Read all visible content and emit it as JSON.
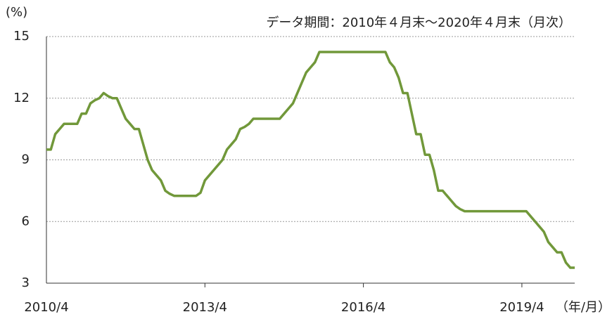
{
  "chart_data": {
    "type": "line",
    "y_unit": "(%)",
    "subtitle": "データ期間：2010年４月末～2020年４月末（月次）",
    "x_unit": "（年/月）",
    "categories": [
      "2010/4",
      null,
      null,
      null,
      null,
      null,
      null,
      null,
      null,
      null,
      null,
      null,
      null,
      null,
      null,
      null,
      null,
      null,
      null,
      null,
      null,
      null,
      null,
      null,
      null,
      null,
      null,
      null,
      null,
      null,
      null,
      null,
      null,
      null,
      null,
      null,
      "2013/4",
      null,
      null,
      null,
      null,
      null,
      null,
      null,
      null,
      null,
      null,
      null,
      null,
      null,
      null,
      null,
      null,
      null,
      null,
      null,
      null,
      null,
      null,
      null,
      null,
      null,
      null,
      null,
      null,
      null,
      null,
      null,
      null,
      null,
      null,
      null,
      "2016/4",
      null,
      null,
      null,
      null,
      null,
      null,
      null,
      null,
      null,
      null,
      null,
      null,
      null,
      null,
      null,
      null,
      null,
      null,
      null,
      null,
      null,
      null,
      null,
      null,
      null,
      null,
      null,
      null,
      null,
      null,
      null,
      null,
      null,
      null,
      null,
      "2019/4",
      null,
      null,
      null,
      null,
      null,
      null,
      null,
      null,
      null,
      null,
      null,
      null
    ],
    "series": [
      {
        "color": "#71983a",
        "values": [
          9.5,
          9.5,
          10.25,
          10.5,
          10.75,
          10.75,
          10.75,
          10.75,
          11.25,
          11.25,
          11.75,
          11.9,
          12.0,
          12.25,
          12.1,
          12.0,
          12.0,
          11.5,
          11.0,
          10.75,
          10.5,
          10.5,
          9.75,
          9.0,
          8.5,
          8.25,
          8.0,
          7.5,
          7.35,
          7.25,
          7.25,
          7.25,
          7.25,
          7.25,
          7.25,
          7.4,
          8.0,
          8.25,
          8.5,
          8.75,
          9.0,
          9.5,
          9.75,
          10.0,
          10.5,
          10.6,
          10.75,
          11.0,
          11.0,
          11.0,
          11.0,
          11.0,
          11.0,
          11.0,
          11.25,
          11.5,
          11.75,
          12.25,
          12.75,
          13.25,
          13.5,
          13.75,
          14.25,
          14.25,
          14.25,
          14.25,
          14.25,
          14.25,
          14.25,
          14.25,
          14.25,
          14.25,
          14.25,
          14.25,
          14.25,
          14.25,
          14.25,
          14.25,
          13.75,
          13.5,
          13.0,
          12.25,
          12.25,
          11.25,
          10.25,
          10.25,
          9.25,
          9.25,
          8.5,
          7.5,
          7.5,
          7.25,
          7.0,
          6.75,
          6.6,
          6.5,
          6.5,
          6.5,
          6.5,
          6.5,
          6.5,
          6.5,
          6.5,
          6.5,
          6.5,
          6.5,
          6.5,
          6.5,
          6.5,
          6.5,
          6.25,
          6.0,
          5.75,
          5.5,
          5.0,
          4.75,
          4.5,
          4.5,
          4.0,
          3.75,
          3.75
        ]
      }
    ],
    "ylim": [
      3,
      15
    ],
    "yticks": [
      3,
      6,
      9,
      12,
      15
    ],
    "grid": true
  }
}
